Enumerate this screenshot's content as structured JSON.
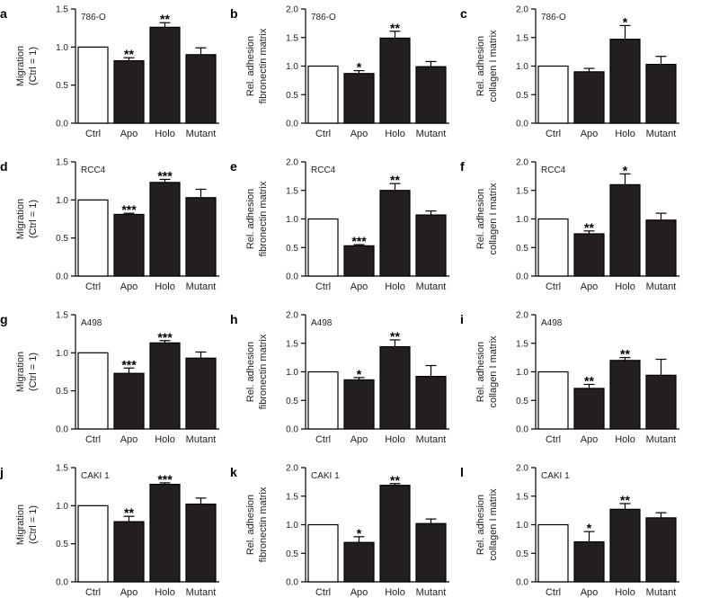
{
  "chart_data": [
    {
      "letter": "a",
      "cell_line": "786-O",
      "type": "bar",
      "ylabel": [
        "Migration",
        "(Ctrl = 1)"
      ],
      "ylim": [
        0,
        1.5
      ],
      "yticks": [
        0.0,
        0.5,
        1.0,
        1.5
      ],
      "categories": [
        "Ctrl",
        "Apo",
        "Holo",
        "Mutant"
      ],
      "values": [
        1.0,
        0.82,
        1.26,
        0.9
      ],
      "errors": [
        0,
        0.04,
        0.06,
        0.09
      ],
      "stars": [
        "",
        "**",
        "**",
        ""
      ]
    },
    {
      "letter": "b",
      "cell_line": "786-O",
      "type": "bar",
      "ylabel": [
        "Rel. adhesion",
        "fibronectin matrix"
      ],
      "ylim": [
        0,
        2.0
      ],
      "yticks": [
        0.0,
        0.5,
        1.0,
        1.5,
        2.0
      ],
      "categories": [
        "Ctrl",
        "Apo",
        "Holo",
        "Mutant"
      ],
      "values": [
        1.0,
        0.87,
        1.49,
        0.99
      ],
      "errors": [
        0,
        0.05,
        0.12,
        0.09
      ],
      "stars": [
        "",
        "*",
        "**",
        ""
      ]
    },
    {
      "letter": "c",
      "cell_line": "786-O",
      "type": "bar",
      "ylabel": [
        "Rel. adhesion",
        "collagen I matrix"
      ],
      "ylim": [
        0,
        2.0
      ],
      "yticks": [
        0.0,
        0.5,
        1.0,
        1.5,
        2.0
      ],
      "categories": [
        "Ctrl",
        "Apo",
        "Holo",
        "Mutant"
      ],
      "values": [
        1.0,
        0.9,
        1.47,
        1.03
      ],
      "errors": [
        0,
        0.06,
        0.24,
        0.14
      ],
      "stars": [
        "",
        "",
        "*",
        ""
      ]
    },
    {
      "letter": "d",
      "cell_line": "RCC4",
      "type": "bar",
      "ylabel": [
        "Migration",
        "(Ctrl = 1)"
      ],
      "ylim": [
        0,
        1.5
      ],
      "yticks": [
        0.0,
        0.5,
        1.0,
        1.5
      ],
      "categories": [
        "Ctrl",
        "Apo",
        "Holo",
        "Mutant"
      ],
      "values": [
        1.0,
        0.81,
        1.23,
        1.03
      ],
      "errors": [
        0,
        0.015,
        0.04,
        0.11
      ],
      "stars": [
        "",
        "***",
        "***",
        ""
      ]
    },
    {
      "letter": "e",
      "cell_line": "RCC4",
      "type": "bar",
      "ylabel": [
        "Rel. adhesion",
        "fibronectin matrix"
      ],
      "ylim": [
        0,
        2.0
      ],
      "yticks": [
        0.0,
        0.5,
        1.0,
        1.5,
        2.0
      ],
      "categories": [
        "Ctrl",
        "Apo",
        "Holo",
        "Mutant"
      ],
      "values": [
        1.0,
        0.53,
        1.5,
        1.07
      ],
      "errors": [
        0,
        0.02,
        0.12,
        0.07
      ],
      "stars": [
        "",
        "***",
        "**",
        ""
      ]
    },
    {
      "letter": "f",
      "cell_line": "RCC4",
      "type": "bar",
      "ylabel": [
        "Rel. adhesion",
        "collagen I matrix"
      ],
      "ylim": [
        0,
        2.0
      ],
      "yticks": [
        0.0,
        0.5,
        1.0,
        1.5,
        2.0
      ],
      "categories": [
        "Ctrl",
        "Apo",
        "Holo",
        "Mutant"
      ],
      "values": [
        1.0,
        0.74,
        1.6,
        0.98
      ],
      "errors": [
        0,
        0.05,
        0.19,
        0.12
      ],
      "stars": [
        "",
        "**",
        "*",
        ""
      ]
    },
    {
      "letter": "g",
      "cell_line": "A498",
      "type": "bar",
      "ylabel": [
        "Migration",
        "(Ctrl = 1)"
      ],
      "ylim": [
        0,
        1.5
      ],
      "yticks": [
        0.0,
        0.5,
        1.0,
        1.5
      ],
      "categories": [
        "Ctrl",
        "Apo",
        "Holo",
        "Mutant"
      ],
      "values": [
        1.0,
        0.73,
        1.13,
        0.93
      ],
      "errors": [
        0,
        0.07,
        0.03,
        0.08
      ],
      "stars": [
        "",
        "***",
        "***",
        ""
      ]
    },
    {
      "letter": "h",
      "cell_line": "A498",
      "type": "bar",
      "ylabel": [
        "Rel. adhesion",
        "fibronectin matrix"
      ],
      "ylim": [
        0,
        2.0
      ],
      "yticks": [
        0.0,
        0.5,
        1.0,
        1.5,
        2.0
      ],
      "categories": [
        "Ctrl",
        "Apo",
        "Holo",
        "Mutant"
      ],
      "values": [
        1.0,
        0.86,
        1.44,
        0.92
      ],
      "errors": [
        0,
        0.04,
        0.12,
        0.19
      ],
      "stars": [
        "",
        "*",
        "**",
        ""
      ]
    },
    {
      "letter": "i",
      "cell_line": "A498",
      "type": "bar",
      "ylabel": [
        "Rel. adhesion",
        "collagen I matrix"
      ],
      "ylim": [
        0,
        2.0
      ],
      "yticks": [
        0.0,
        0.5,
        1.0,
        1.5,
        2.0
      ],
      "categories": [
        "Ctrl",
        "Apo",
        "Holo",
        "Mutant"
      ],
      "values": [
        1.0,
        0.71,
        1.2,
        0.94
      ],
      "errors": [
        0,
        0.07,
        0.05,
        0.28
      ],
      "stars": [
        "",
        "**",
        "**",
        ""
      ]
    },
    {
      "letter": "j",
      "cell_line": "CAKI 1",
      "type": "bar",
      "ylabel": [
        "Migration",
        "(Ctrl = 1)"
      ],
      "ylim": [
        0,
        1.5
      ],
      "yticks": [
        0.0,
        0.5,
        1.0,
        1.5
      ],
      "categories": [
        "Ctrl",
        "Apo",
        "Holo",
        "Mutant"
      ],
      "values": [
        1.0,
        0.79,
        1.28,
        1.02
      ],
      "errors": [
        0,
        0.07,
        0.02,
        0.08
      ],
      "stars": [
        "",
        "**",
        "***",
        ""
      ]
    },
    {
      "letter": "k",
      "cell_line": "CAKI 1",
      "type": "bar",
      "ylabel": [
        "Rel. adhesion",
        "fibronectin matrix"
      ],
      "ylim": [
        0,
        2.0
      ],
      "yticks": [
        0.0,
        0.5,
        1.0,
        1.5,
        2.0
      ],
      "categories": [
        "Ctrl",
        "Apo",
        "Holo",
        "Mutant"
      ],
      "values": [
        1.0,
        0.69,
        1.69,
        1.02
      ],
      "errors": [
        0,
        0.1,
        0.03,
        0.08
      ],
      "stars": [
        "",
        "*",
        "**",
        ""
      ]
    },
    {
      "letter": "l",
      "cell_line": "CAKI 1",
      "type": "bar",
      "ylabel": [
        "Rel. adhesion",
        "collagen I matrix"
      ],
      "ylim": [
        0,
        2.0
      ],
      "yticks": [
        0.0,
        0.5,
        1.0,
        1.5,
        2.0
      ],
      "categories": [
        "Ctrl",
        "Apo",
        "Holo",
        "Mutant"
      ],
      "values": [
        1.0,
        0.7,
        1.27,
        1.12
      ],
      "errors": [
        0,
        0.18,
        0.1,
        0.09
      ],
      "stars": [
        "",
        "*",
        "**",
        ""
      ]
    }
  ],
  "colors": {
    "ctrl_fill": "#ffffff",
    "bar_fill": "#231f20",
    "stroke": "#000000"
  }
}
